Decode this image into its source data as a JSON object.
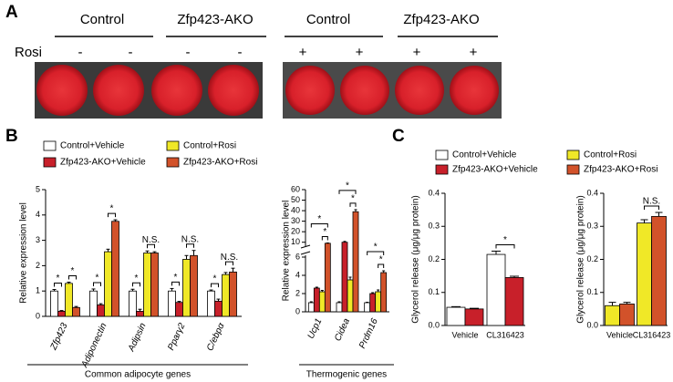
{
  "panel_labels": [
    "A",
    "B",
    "C"
  ],
  "panel_a": {
    "groups": [
      "Control",
      "Zfp423-AKO",
      "Control",
      "Zfp423-AKO"
    ],
    "row_label": "Rosi",
    "treatments": [
      "-",
      "-",
      "-",
      "-",
      "+",
      "+",
      "+",
      "+"
    ]
  },
  "chart_data": [
    {
      "type": "bar",
      "ylabel": "Relative expression level",
      "group_label": "Common adipocyte genes",
      "italic_categories": true,
      "categories": [
        "Zfp423",
        "Adiponectin",
        "Adipsin",
        "Pparγ2",
        "C/ebpα"
      ],
      "series": [
        {
          "name": "Control+Vehicle",
          "color": "#ffffff",
          "values": [
            1.0,
            1.0,
            1.0,
            1.0,
            1.0
          ],
          "errors": [
            0.06,
            0.08,
            0.07,
            0.1,
            0.04
          ]
        },
        {
          "name": "Zfp423-AKO+Vehicle",
          "color": "#c8202a",
          "values": [
            0.2,
            0.45,
            0.2,
            0.55,
            0.6
          ],
          "errors": [
            0.03,
            0.05,
            0.08,
            0.04,
            0.08
          ]
        },
        {
          "name": "Control+Rosi",
          "color": "#f0e827",
          "values": [
            1.3,
            2.55,
            2.5,
            2.25,
            1.65
          ],
          "errors": [
            0.05,
            0.1,
            0.08,
            0.15,
            0.08
          ]
        },
        {
          "name": "Zfp423-AKO+Rosi",
          "color": "#d2522a",
          "values": [
            0.35,
            3.75,
            2.5,
            2.4,
            1.75
          ],
          "errors": [
            0.04,
            0.06,
            0.05,
            0.2,
            0.15
          ]
        }
      ],
      "ylim": [
        0,
        5
      ],
      "yticks": [
        0,
        1,
        2,
        3,
        4,
        5
      ],
      "annotations": [
        {
          "category": 0,
          "between": [
            0,
            1
          ],
          "text": "*"
        },
        {
          "category": 0,
          "between": [
            2,
            3
          ],
          "text": "*"
        },
        {
          "category": 1,
          "between": [
            0,
            1
          ],
          "text": "*"
        },
        {
          "category": 1,
          "between": [
            2,
            3
          ],
          "text": "*"
        },
        {
          "category": 2,
          "between": [
            0,
            1
          ],
          "text": "*"
        },
        {
          "category": 2,
          "between": [
            2,
            3
          ],
          "text": "N.S."
        },
        {
          "category": 3,
          "between": [
            0,
            1
          ],
          "text": "*"
        },
        {
          "category": 3,
          "between": [
            2,
            3
          ],
          "text": "N.S."
        },
        {
          "category": 4,
          "between": [
            0,
            1
          ],
          "text": "*"
        },
        {
          "category": 4,
          "between": [
            2,
            3
          ],
          "text": "N.S."
        }
      ]
    },
    {
      "type": "bar",
      "ylabel": "Relative expression level",
      "group_label": "Thermogenic genes",
      "italic_categories": true,
      "categories": [
        "Ucp1",
        "Cidea",
        "Prdm16"
      ],
      "series": [
        {
          "color": "#ffffff",
          "values": [
            1.0,
            1.0,
            1.0
          ],
          "errors": [
            0.1,
            0.1,
            0.05
          ]
        },
        {
          "color": "#c8202a",
          "values": [
            2.6,
            10,
            2.0
          ],
          "errors": [
            0.1,
            0.8,
            0.1
          ]
        },
        {
          "color": "#f0e827",
          "values": [
            2.2,
            3.5,
            2.2
          ],
          "errors": [
            0.15,
            0.3,
            0.2
          ]
        },
        {
          "color": "#d2522a",
          "values": [
            9,
            39,
            4.3
          ],
          "errors": [
            0.3,
            2,
            0.2
          ]
        }
      ],
      "ylim": [
        0,
        60
      ],
      "ybreak": [
        6,
        8
      ],
      "yticks": [
        0,
        2,
        4,
        6,
        10,
        20,
        30,
        40,
        50,
        60
      ],
      "annotations": [
        {
          "category": 0,
          "between": [
            2,
            3
          ],
          "text": "*"
        },
        {
          "category": 0,
          "between": [
            0,
            3
          ],
          "text": "*"
        },
        {
          "category": 1,
          "between": [
            2,
            3
          ],
          "text": "*"
        },
        {
          "category": 1,
          "between": [
            0,
            3
          ],
          "text": "*"
        },
        {
          "category": 2,
          "between": [
            2,
            3
          ],
          "text": "*"
        },
        {
          "category": 2,
          "between": [
            0,
            3
          ],
          "text": "*"
        }
      ]
    },
    {
      "type": "bar",
      "ylabel": "Glycerol release (μg/μg protein)",
      "categories": [
        "Vehicle",
        "CL316423"
      ],
      "series": [
        {
          "name": "Control+Vehicle",
          "color": "#ffffff",
          "values": [
            0.055,
            0.215
          ],
          "errors": [
            0.002,
            0.01
          ]
        },
        {
          "name": "Zfp423-AKO+Vehicle",
          "color": "#c8202a",
          "values": [
            0.05,
            0.145
          ],
          "errors": [
            0.002,
            0.004
          ]
        }
      ],
      "ylim": [
        0,
        0.4
      ],
      "yticks": [
        {
          "value": 0,
          "label": "0.0"
        },
        0.1,
        0.2,
        0.3,
        0.4
      ],
      "annotations": [
        {
          "category": 1,
          "between": [
            0,
            1
          ],
          "text": "*"
        }
      ]
    },
    {
      "type": "bar",
      "ylabel": "Glycerol release (μg/μg protein)",
      "categories": [
        "Vehicle",
        "CL316423"
      ],
      "series": [
        {
          "name": "Control+Rosi",
          "color": "#f0e827",
          "values": [
            0.06,
            0.31
          ],
          "errors": [
            0.01,
            0.01
          ]
        },
        {
          "name": "Zfp423-AKO+Rosi",
          "color": "#d2522a",
          "values": [
            0.065,
            0.33
          ],
          "errors": [
            0.005,
            0.012
          ]
        }
      ],
      "ylim": [
        0,
        0.4
      ],
      "yticks": [
        {
          "value": 0,
          "label": "0.0"
        },
        0.1,
        0.2,
        0.3,
        0.4
      ],
      "annotations": [
        {
          "category": 1,
          "between": [
            0,
            1
          ],
          "text": "N.S."
        }
      ]
    }
  ]
}
